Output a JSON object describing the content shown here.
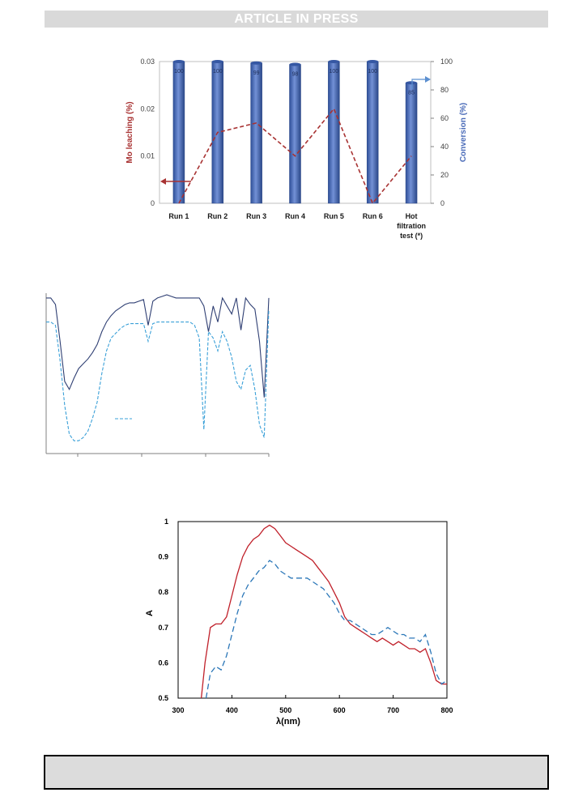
{
  "header": {
    "banner": "ARTICLE IN PRESS"
  },
  "chart_data": [
    {
      "type": "bar",
      "categories": [
        "Run 1",
        "Run 2",
        "Run 3",
        "Run 4",
        "Run 5",
        "Run 6",
        "Hot filtration test (*)"
      ],
      "category_lines": [
        [
          "Run 1"
        ],
        [
          "Run 2"
        ],
        [
          "Run 3"
        ],
        [
          "Run 4"
        ],
        [
          "Run 5"
        ],
        [
          "Run 6"
        ],
        [
          "Hot",
          "filtration",
          "test (*)"
        ]
      ],
      "series": [
        {
          "name": "Conversion (%)",
          "axis": "right",
          "values": [
            100,
            100,
            99,
            98,
            100,
            100,
            85
          ],
          "labels": [
            "100",
            "100",
            "99",
            "98",
            "100",
            "100",
            "85"
          ],
          "color": "#4a6bb8"
        },
        {
          "name": "Mo leaching (%)",
          "axis": "left",
          "type": "line",
          "values": [
            0,
            0.015,
            0.017,
            0.01,
            0.02,
            0,
            0.01
          ],
          "color": "#a83232"
        }
      ],
      "ylabel": "Mo leaching (%)",
      "y2label": "Conversion (%)",
      "ylim": [
        0,
        0.03
      ],
      "yticks": [
        "0",
        "0.01",
        "0.02",
        "0.03"
      ],
      "y2lim": [
        0,
        100
      ],
      "y2ticks": [
        "0",
        "20",
        "40",
        "60",
        "80",
        "100"
      ]
    },
    {
      "type": "line",
      "series": [
        {
          "name": "solid",
          "color": "#2f3f73",
          "style": "solid",
          "y": [
            0.97,
            0.97,
            0.93,
            0.7,
            0.45,
            0.4,
            0.47,
            0.53,
            0.56,
            0.59,
            0.63,
            0.68,
            0.76,
            0.82,
            0.86,
            0.89,
            0.91,
            0.93,
            0.94,
            0.94,
            0.95,
            0.96,
            0.8,
            0.95,
            0.97,
            0.98,
            0.99,
            0.98,
            0.97,
            0.97,
            0.97,
            0.97,
            0.97,
            0.97,
            0.92,
            0.76,
            0.92,
            0.82,
            0.97,
            0.92,
            0.87,
            0.97,
            0.77,
            0.97,
            0.93,
            0.9,
            0.7,
            0.35,
            0.97
          ]
        },
        {
          "name": "dashed",
          "color": "#3aa0d8",
          "style": "dashed",
          "y": [
            0.82,
            0.82,
            0.8,
            0.58,
            0.3,
            0.12,
            0.08,
            0.08,
            0.1,
            0.14,
            0.22,
            0.32,
            0.5,
            0.64,
            0.72,
            0.75,
            0.78,
            0.8,
            0.81,
            0.81,
            0.81,
            0.81,
            0.7,
            0.81,
            0.82,
            0.82,
            0.82,
            0.82,
            0.82,
            0.82,
            0.82,
            0.82,
            0.8,
            0.72,
            0.15,
            0.76,
            0.72,
            0.64,
            0.76,
            0.7,
            0.6,
            0.45,
            0.4,
            0.52,
            0.55,
            0.4,
            0.18,
            0.1,
            0.9
          ]
        }
      ]
    },
    {
      "type": "line",
      "xlabel": "λ(nm)",
      "ylabel": "A",
      "xlim": [
        300,
        800
      ],
      "ylim": [
        0.5,
        1
      ],
      "xticks": [
        "300",
        "400",
        "500",
        "600",
        "700",
        "800"
      ],
      "yticks": [
        "0.5",
        "0.6",
        "0.7",
        "0.8",
        "0.9",
        "1"
      ],
      "series": [
        {
          "name": "red",
          "color": "#c0202a",
          "style": "solid",
          "x": [
            343,
            350,
            360,
            370,
            380,
            390,
            400,
            410,
            420,
            430,
            440,
            450,
            460,
            470,
            480,
            490,
            500,
            510,
            520,
            530,
            540,
            550,
            560,
            570,
            580,
            590,
            600,
            610,
            620,
            630,
            640,
            650,
            660,
            670,
            680,
            690,
            700,
            710,
            720,
            730,
            740,
            750,
            760,
            770,
            780,
            790,
            800
          ],
          "y": [
            0.5,
            0.6,
            0.7,
            0.71,
            0.71,
            0.73,
            0.79,
            0.85,
            0.9,
            0.93,
            0.95,
            0.96,
            0.98,
            0.99,
            0.98,
            0.96,
            0.94,
            0.93,
            0.92,
            0.91,
            0.9,
            0.89,
            0.87,
            0.85,
            0.83,
            0.8,
            0.77,
            0.73,
            0.71,
            0.7,
            0.69,
            0.68,
            0.67,
            0.66,
            0.67,
            0.66,
            0.65,
            0.66,
            0.65,
            0.64,
            0.64,
            0.63,
            0.64,
            0.6,
            0.55,
            0.54,
            0.54
          ]
        },
        {
          "name": "blue",
          "color": "#2b77b8",
          "style": "dashed",
          "x": [
            352,
            360,
            370,
            380,
            390,
            400,
            410,
            420,
            430,
            440,
            450,
            460,
            470,
            480,
            490,
            500,
            510,
            520,
            530,
            540,
            550,
            560,
            570,
            580,
            590,
            600,
            610,
            620,
            630,
            640,
            650,
            660,
            670,
            680,
            690,
            700,
            710,
            720,
            730,
            740,
            750,
            760,
            770,
            780,
            790,
            800
          ],
          "y": [
            0.5,
            0.57,
            0.59,
            0.58,
            0.62,
            0.68,
            0.74,
            0.79,
            0.82,
            0.84,
            0.86,
            0.87,
            0.89,
            0.88,
            0.86,
            0.85,
            0.84,
            0.84,
            0.84,
            0.84,
            0.83,
            0.82,
            0.81,
            0.79,
            0.77,
            0.74,
            0.72,
            0.72,
            0.71,
            0.7,
            0.69,
            0.68,
            0.68,
            0.69,
            0.7,
            0.69,
            0.68,
            0.68,
            0.67,
            0.67,
            0.66,
            0.68,
            0.63,
            0.57,
            0.54,
            0.55
          ]
        }
      ]
    }
  ]
}
